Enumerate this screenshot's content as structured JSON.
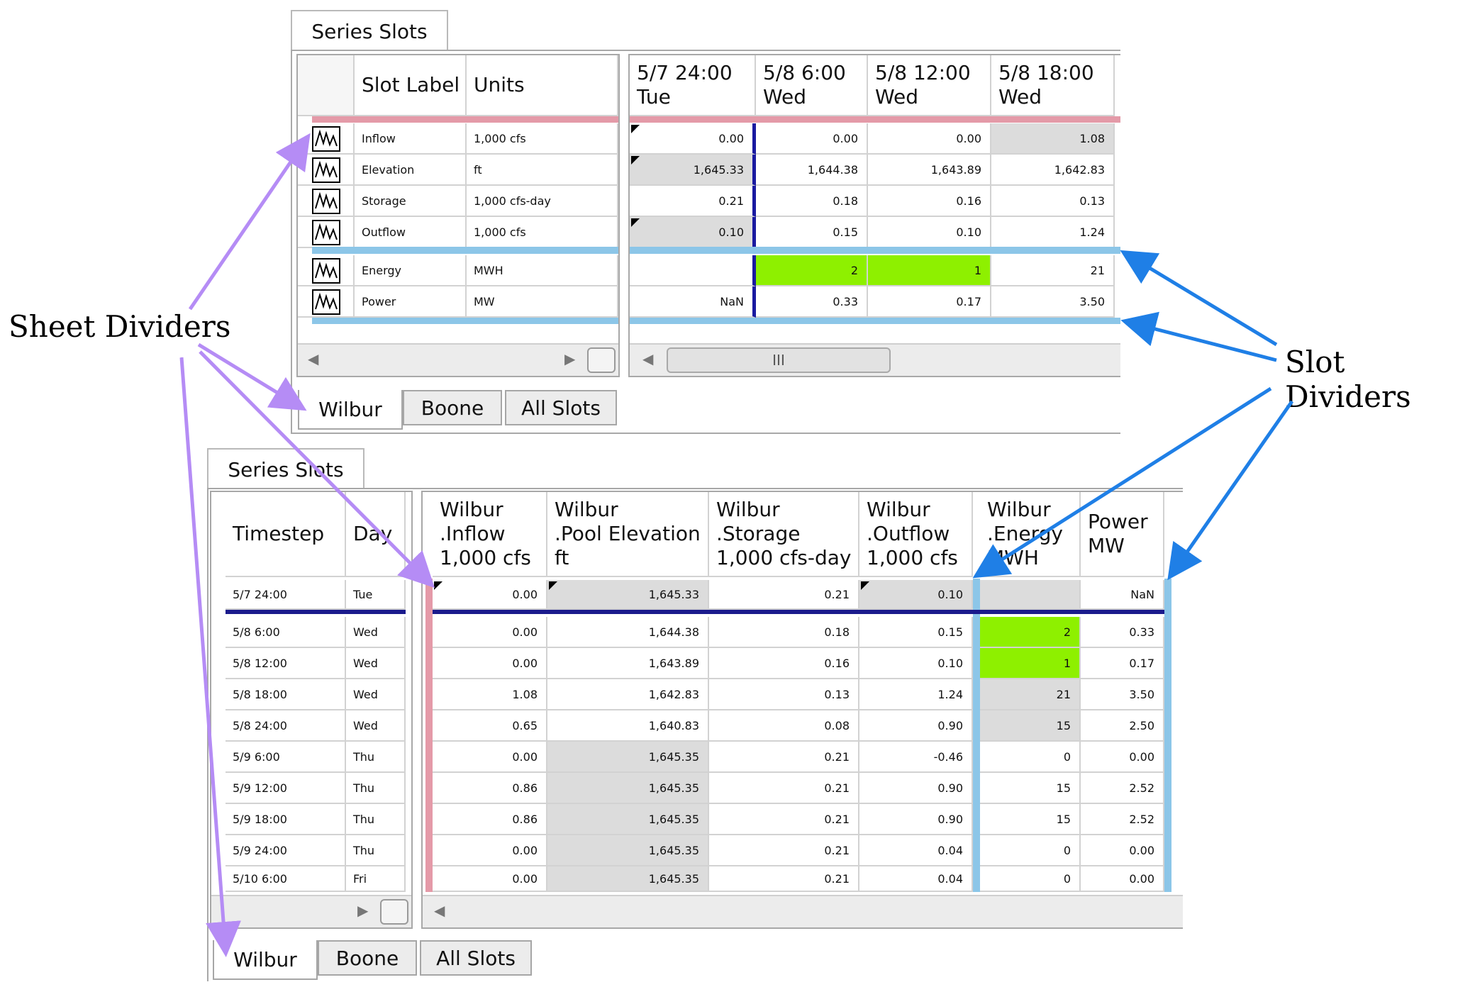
{
  "top_panel": {
    "tab_title": "Series Slots",
    "header": {
      "slot_label": "Slot Label",
      "units": "Units"
    },
    "columns": [
      {
        "line1": "5/7 24:00",
        "line2": "Tue"
      },
      {
        "line1": "5/8 6:00",
        "line2": "Wed"
      },
      {
        "line1": "5/8 12:00",
        "line2": "Wed"
      },
      {
        "line1": "5/8 18:00",
        "line2": "Wed"
      }
    ],
    "rows": [
      {
        "label": "Inflow",
        "units": "1,000 cfs",
        "values": [
          "0.00",
          "0.00",
          "0.00",
          "1.08"
        ]
      },
      {
        "label": "Elevation",
        "units": "ft",
        "values": [
          "1,645.33",
          "1,644.38",
          "1,643.89",
          "1,642.83"
        ]
      },
      {
        "label": "Storage",
        "units": "1,000 cfs-day",
        "values": [
          "0.21",
          "0.18",
          "0.16",
          "0.13"
        ]
      },
      {
        "label": "Outflow",
        "units": "1,000 cfs",
        "values": [
          "0.10",
          "0.15",
          "0.10",
          "1.24"
        ]
      },
      {
        "label": "Energy",
        "units": "MWH",
        "values": [
          "",
          "2",
          "1",
          "21"
        ]
      },
      {
        "label": "Power",
        "units": "MW",
        "values": [
          "NaN",
          "0.33",
          "0.17",
          "3.50"
        ]
      }
    ],
    "scroll_thumb": "III",
    "sheet_tabs": [
      "Wilbur",
      "Boone",
      "All Slots"
    ]
  },
  "bottom_panel": {
    "tab_title": "Series Slots",
    "header": {
      "timestep": "Timestep",
      "day": "Day"
    },
    "columns": [
      {
        "line1": "Wilbur",
        "line2": ".Inflow",
        "line3": "1,000 cfs"
      },
      {
        "line1": "Wilbur",
        "line2": ".Pool Elevation",
        "line3": "ft"
      },
      {
        "line1": "Wilbur",
        "line2": ".Storage",
        "line3": "1,000 cfs-day"
      },
      {
        "line1": "Wilbur",
        "line2": ".Outflow",
        "line3": "1,000 cfs"
      },
      {
        "line1": "Wilbur",
        "line2": ".Energy",
        "line3": "MWH"
      },
      {
        "line1": "Power",
        "line2": "MW",
        "line3": ""
      }
    ],
    "rows": [
      {
        "timestep": "5/7 24:00",
        "day": "Tue",
        "values": [
          "0.00",
          "1,645.33",
          "0.21",
          "0.10",
          "",
          "NaN"
        ]
      },
      {
        "timestep": "5/8 6:00",
        "day": "Wed",
        "values": [
          "0.00",
          "1,644.38",
          "0.18",
          "0.15",
          "2",
          "0.33"
        ]
      },
      {
        "timestep": "5/8 12:00",
        "day": "Wed",
        "values": [
          "0.00",
          "1,643.89",
          "0.16",
          "0.10",
          "1",
          "0.17"
        ]
      },
      {
        "timestep": "5/8 18:00",
        "day": "Wed",
        "values": [
          "1.08",
          "1,642.83",
          "0.13",
          "1.24",
          "21",
          "3.50"
        ]
      },
      {
        "timestep": "5/8 24:00",
        "day": "Wed",
        "values": [
          "0.65",
          "1,640.83",
          "0.08",
          "0.90",
          "15",
          "2.50"
        ]
      },
      {
        "timestep": "5/9 6:00",
        "day": "Thu",
        "values": [
          "0.00",
          "1,645.35",
          "0.21",
          "-0.46",
          "0",
          "0.00"
        ]
      },
      {
        "timestep": "5/9 12:00",
        "day": "Thu",
        "values": [
          "0.86",
          "1,645.35",
          "0.21",
          "0.90",
          "15",
          "2.52"
        ]
      },
      {
        "timestep": "5/9 18:00",
        "day": "Thu",
        "values": [
          "0.86",
          "1,645.35",
          "0.21",
          "0.90",
          "15",
          "2.52"
        ]
      },
      {
        "timestep": "5/9 24:00",
        "day": "Thu",
        "values": [
          "0.00",
          "1,645.35",
          "0.21",
          "0.04",
          "0",
          "0.00"
        ]
      },
      {
        "timestep": "5/10 6:00",
        "day": "Fri",
        "values": [
          "0.00",
          "1,645.35",
          "0.21",
          "0.04",
          "0",
          "0.00"
        ]
      }
    ],
    "sheet_tabs": [
      "Wilbur",
      "Boone",
      "All Slots"
    ]
  },
  "annotations": {
    "sheet_dividers": "Sheet Dividers",
    "slot_dividers": "Slot Dividers"
  },
  "colors": {
    "sheet_divider": "#e49aa8",
    "slot_divider": "#8cc6e8",
    "highlight_green": "#8ef000",
    "arrow_purple": "#b58cf5",
    "arrow_blue": "#1f7fe6"
  }
}
